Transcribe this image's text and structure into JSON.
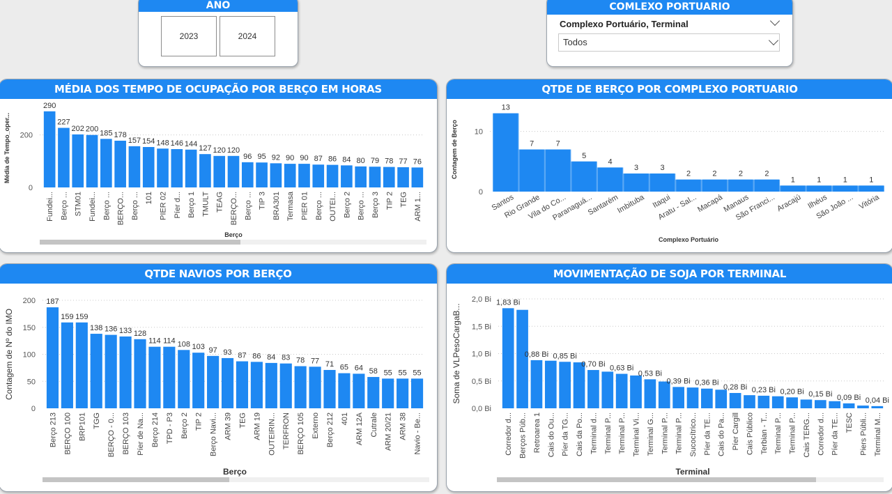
{
  "slicers": {
    "ano": {
      "title": "ANO",
      "options": [
        "2023",
        "2024"
      ]
    },
    "complexo": {
      "title": "COMLEXO PORTUARIO",
      "field_label": "Complexo Portuário, Terminal",
      "selected": "Todos"
    }
  },
  "chart_data": [
    {
      "type": "bar",
      "title": "MÉDIA DOS TEMPO DE OCUPAÇÃO POR BERÇO EM HORAS",
      "xlabel": "Berço",
      "ylabel": "Média de Tempo_oper...",
      "ylim": [
        0,
        300
      ],
      "yticks": [
        "0",
        "200"
      ],
      "categories": [
        "Fundei...",
        "Berço ...",
        "STM01",
        "Fundei...",
        "Berço ...",
        "BERÇO...",
        "Berço ...",
        "101",
        "PIER 02",
        "Píer d...",
        "Berço 1",
        "TMULT",
        "TEAG",
        "BERÇO...",
        "Berço ...",
        "TIP 3",
        "BRA301",
        "Termasa",
        "PIER 01",
        "Berço ...",
        "OUTEI...",
        "Berço 2",
        "Berço ...",
        "Berço 3",
        "TIP 2",
        "TEG",
        "ARM 1..."
      ],
      "values": [
        290,
        227,
        202,
        200,
        185,
        178,
        157,
        154,
        148,
        146,
        144,
        127,
        120,
        120,
        96,
        95,
        92,
        90,
        90,
        87,
        86,
        84,
        80,
        79,
        78,
        77,
        76
      ],
      "labels": [
        "290",
        "227",
        "202",
        "200",
        "185",
        "178",
        "157",
        "154",
        "148",
        "146",
        "144",
        "127",
        "120",
        "120",
        "96",
        "95",
        "92",
        "90",
        "90",
        "87",
        "86",
        "84",
        "80",
        "79",
        "78",
        "77",
        "76"
      ],
      "grid": true,
      "color": "#1e88f2"
    },
    {
      "type": "bar",
      "title": "QTDE DE BERÇO POR COMPLEXO PORTUARIO",
      "xlabel": "Complexo Portuário",
      "ylabel": "Contagem de Berço",
      "ylim": [
        0,
        14
      ],
      "yticks": [
        "0",
        "10"
      ],
      "categories": [
        "Santos",
        "Rio Grande",
        "Vila do Co...",
        "Paranaguá...",
        "Santarém",
        "Imbituba",
        "Itaqui",
        "Aratu - Sal...",
        "Macapá",
        "Manaus",
        "São Franci...",
        "Aracajú",
        "Ilhéus",
        "São João ...",
        "Vitória"
      ],
      "values": [
        13,
        7,
        7,
        5,
        4,
        3,
        3,
        2,
        2,
        2,
        2,
        1,
        1,
        1,
        1
      ],
      "labels": [
        "13",
        "7",
        "7",
        "5",
        "4",
        "3",
        "3",
        "2",
        "2",
        "2",
        "2",
        "1",
        "1",
        "1",
        "1"
      ],
      "grid": true,
      "color": "#1e88f2"
    },
    {
      "type": "bar",
      "title": "QTDE NAVIOS POR BERÇO",
      "xlabel": "Berço",
      "ylabel": "Contagem de Nº do IMO",
      "ylim": [
        0,
        200
      ],
      "yticks": [
        "0",
        "50",
        "100",
        "150",
        "200"
      ],
      "categories": [
        "Berço 213",
        "BERÇO 100",
        "BRP101",
        "TGG",
        "BERÇO - 0...",
        "BERÇO 103",
        "Píer de Na...",
        "Berço 214",
        "TPD - P3",
        "Berço 2",
        "TIP 2",
        "Berço Navi...",
        "ARM 39",
        "TEG",
        "ARM 19",
        "OUTEIRIN...",
        "TERFRON",
        "BERÇO 105",
        "Externo",
        "Berço 212",
        "401",
        "ARM 12A",
        "Cutrale",
        "ARM 20/21",
        "ARM 38",
        "Navio - Be..."
      ],
      "values": [
        187,
        159,
        159,
        138,
        136,
        133,
        128,
        114,
        114,
        108,
        103,
        97,
        93,
        87,
        86,
        84,
        83,
        78,
        77,
        71,
        65,
        64,
        58,
        55,
        55,
        55
      ],
      "labels": [
        "187",
        "159",
        "159",
        "138",
        "136",
        "133",
        "128",
        "114",
        "114",
        "108",
        "103",
        "97",
        "93",
        "87",
        "86",
        "84",
        "83",
        "78",
        "77",
        "71",
        "65",
        "64",
        "58",
        "55",
        "55",
        "55"
      ],
      "grid": true,
      "color": "#1e88f2"
    },
    {
      "type": "bar",
      "title": "MOVIMENTAÇÃO DE SOJA POR TERMINAL",
      "xlabel": "Terminal",
      "ylabel": "Soma de VLPesoCargaB...",
      "ylim": [
        0,
        2.0
      ],
      "yticks": [
        "0,0 Bi",
        "0,5 Bi",
        "1,0 Bi",
        "1,5 Bi",
        "2,0 Bi"
      ],
      "categories": [
        "Corredor d...",
        "Berços Púb...",
        "Retroarea 1",
        "Cais do Ou...",
        "Píer da TG...",
        "Cais da Po...",
        "Terminal d...",
        "Terminal P...",
        "Terminal P...",
        "Terminal Vi...",
        "Terminal G...",
        "Terminal P...",
        "Terminal P...",
        "Sucocítrico...",
        "Píer da TE...",
        "Cais do Pa...",
        "Píer Cargill",
        "Cais Público",
        "Terbian - T...",
        "Terminal P...",
        "Terminal P...",
        "Cais TERG...",
        "Corredor d...",
        "Píer da TE...",
        "TESC",
        "Piers Públi...",
        "Terminal M..."
      ],
      "values": [
        1.83,
        1.8,
        0.88,
        0.87,
        0.85,
        0.84,
        0.7,
        0.67,
        0.63,
        0.6,
        0.53,
        0.49,
        0.39,
        0.38,
        0.36,
        0.34,
        0.28,
        0.24,
        0.23,
        0.22,
        0.2,
        0.16,
        0.15,
        0.13,
        0.09,
        0.05,
        0.04
      ],
      "labels": [
        "1,83 Bi",
        "",
        "0,88 Bi",
        "",
        "0,85 Bi",
        "",
        "0,70 Bi",
        "",
        "0,63 Bi",
        "",
        "0,53 Bi",
        "",
        "0,39 Bi",
        "",
        "0,36 Bi",
        "",
        "0,28 Bi",
        "",
        "0,23 Bi",
        "",
        "0,20 Bi",
        "",
        "0,15 Bi",
        "",
        "0,09 Bi",
        "",
        "0,04 Bi"
      ],
      "grid": true,
      "color": "#1e88f2"
    }
  ]
}
